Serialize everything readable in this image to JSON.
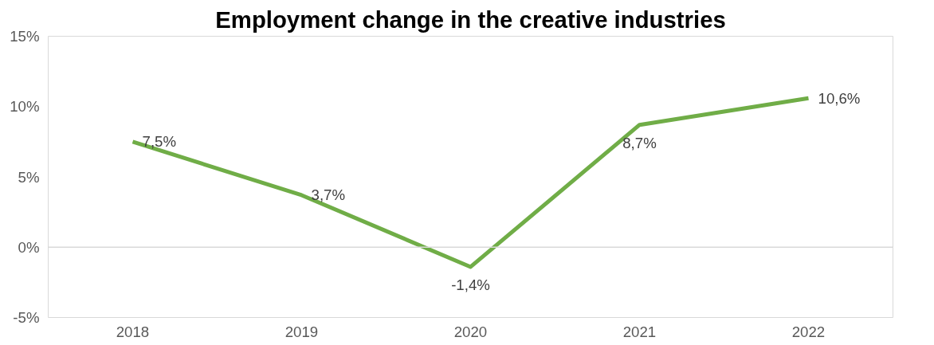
{
  "chart_data": {
    "type": "line",
    "title": "Employment change in the creative industries",
    "categories": [
      "2018",
      "2019",
      "2020",
      "2021",
      "2022"
    ],
    "series": [
      {
        "color": "#70ad47",
        "values": [
          7.5,
          3.7,
          -1.4,
          8.7,
          10.6
        ],
        "value_labels": [
          "7,5%",
          "3,7%",
          "-1,4%",
          "8,7%",
          "10,6%"
        ]
      }
    ],
    "ylim": [
      -5,
      15
    ],
    "yticks": [
      {
        "value": -5,
        "label": "-5%"
      },
      {
        "value": 0,
        "label": "0%"
      },
      {
        "value": 5,
        "label": "5%"
      },
      {
        "value": 10,
        "label": "10%"
      },
      {
        "value": 15,
        "label": "15%"
      }
    ],
    "ref_lines": [
      {
        "axis": "y",
        "value": 0,
        "color": "#d9d9d9"
      }
    ],
    "grid": false,
    "marker": "none",
    "line_style": "solid"
  }
}
